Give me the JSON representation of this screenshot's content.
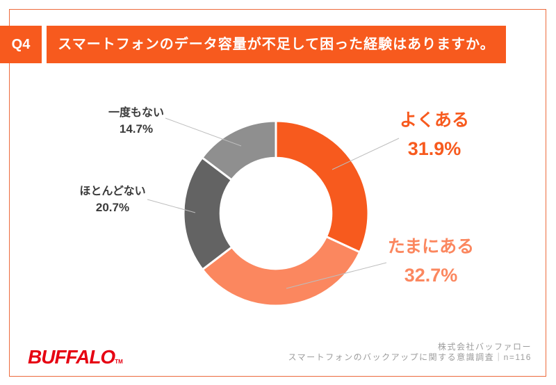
{
  "header": {
    "q_label": "Q4",
    "title": "スマートフォンのデータ容量が不足して困った経験はありますか。"
  },
  "chart_data": {
    "type": "pie",
    "subtype": "donut",
    "title": "スマートフォンのデータ容量が不足して困った経験はありますか。",
    "labels": [
      "よくある",
      "たまにある",
      "ほとんどない",
      "一度もない"
    ],
    "values": [
      31.9,
      32.7,
      20.7,
      14.7
    ],
    "percent_labels": [
      "31.9%",
      "32.7%",
      "20.7%",
      "14.7%"
    ],
    "colors": [
      "#F75A1E",
      "#FB875F",
      "#636363",
      "#8F8F8F"
    ],
    "label_colors": [
      "#F75A1E",
      "#FB875F",
      "#3A3A3A",
      "#3A3A3A"
    ],
    "start_angle_deg": 0,
    "direction": "clockwise",
    "inner_radius_ratio": 0.6,
    "slice_gap_color": "#FFFFFF",
    "label_position": "callout"
  },
  "footer": {
    "logo_text": "BUFFALO",
    "logo_tm": "TM",
    "credit_line1": "株式会社バッファロー",
    "credit_line2": "スマートフォンのバックアップに関する意識調査｜n=116"
  },
  "colors": {
    "accent_orange": "#F75A1E",
    "buffalo_red": "#E60012",
    "card_border": "#ED6A3C",
    "leader_line": "#BDBDBD"
  }
}
